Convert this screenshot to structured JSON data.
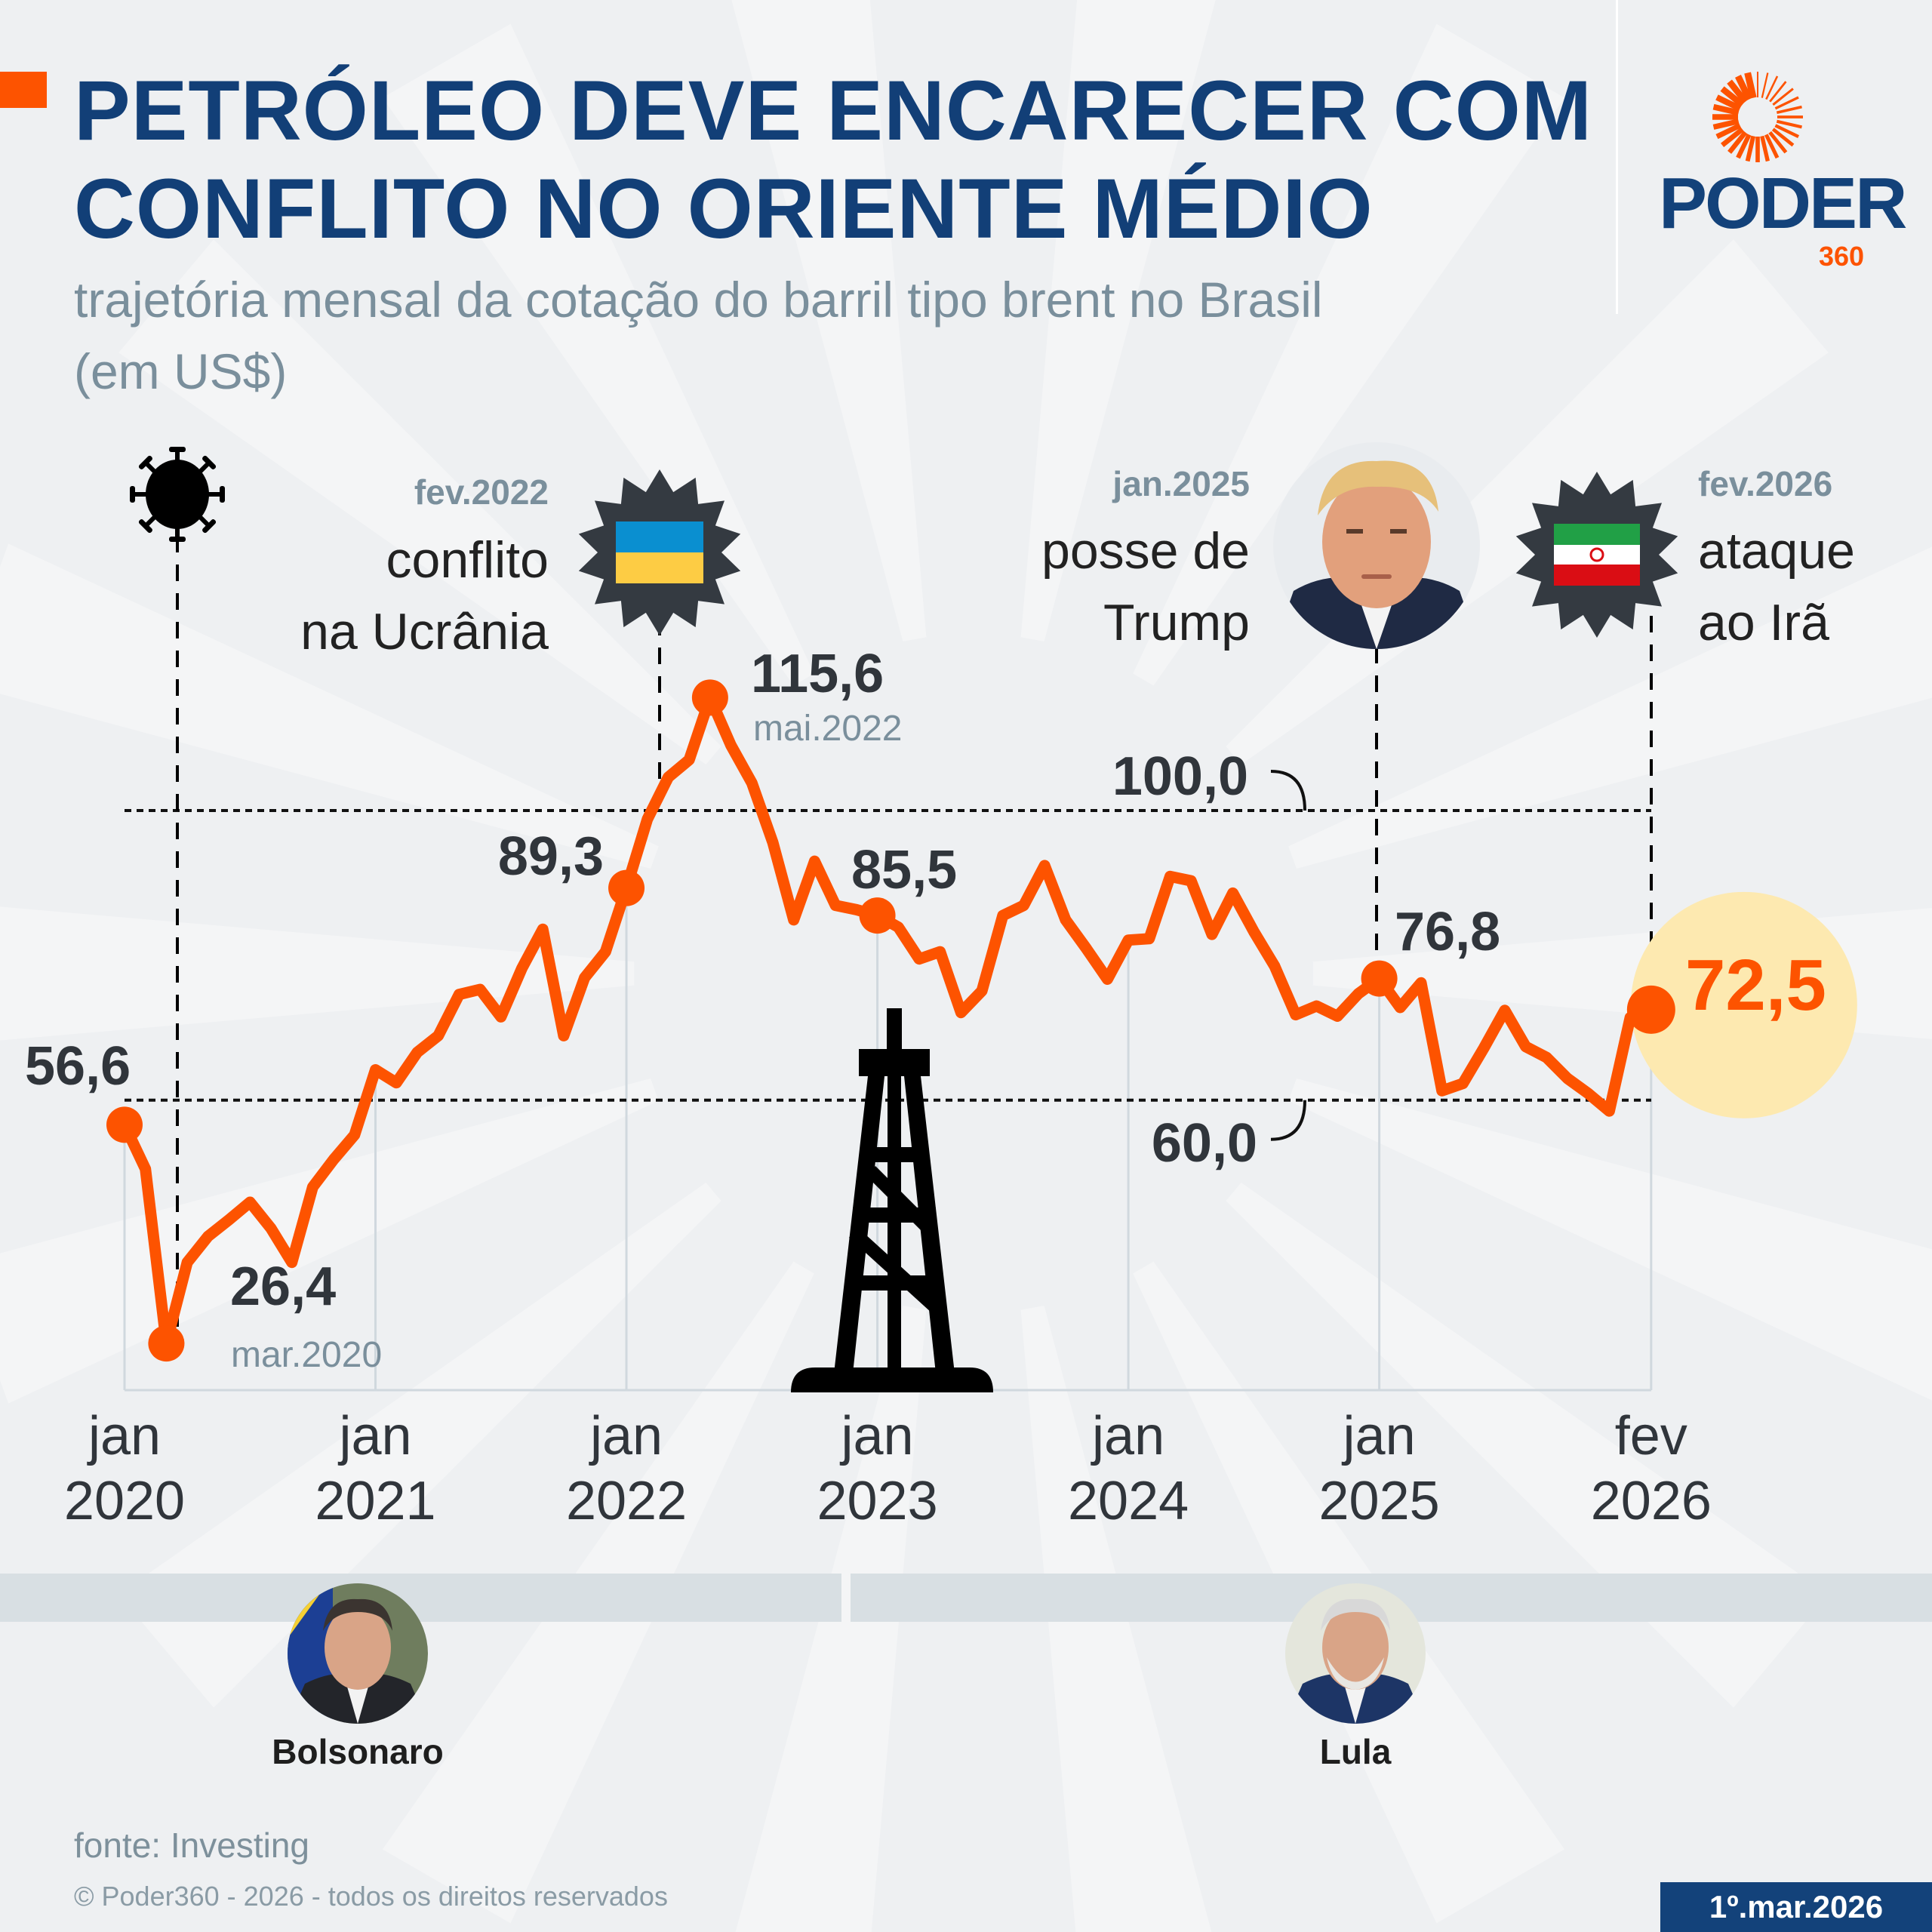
{
  "header": {
    "title_lines": [
      "PETRÓLEO DEVE ENCARECER COM",
      "CONFLITO NO ORIENTE MÉDIO"
    ],
    "subtitle_lines": [
      "trajetória mensal da cotação do barril tipo brent no Brasil",
      "(em US$)"
    ]
  },
  "logo": {
    "word": "PODER",
    "number": "360"
  },
  "colors": {
    "line": "#fd5300",
    "title": "#123f77",
    "highlight_circle": "#fde9b0",
    "band": "#d8dfe3"
  },
  "chart_data": {
    "type": "line",
    "title": "",
    "xlabel": "",
    "ylabel": "",
    "ylim": [
      20,
      120
    ],
    "grid": false,
    "x": [
      "2020-01",
      "2020-02",
      "2020-03",
      "2020-04",
      "2020-05",
      "2020-06",
      "2020-07",
      "2020-08",
      "2020-09",
      "2020-10",
      "2020-11",
      "2020-12",
      "2021-01",
      "2021-02",
      "2021-03",
      "2021-04",
      "2021-05",
      "2021-06",
      "2021-07",
      "2021-08",
      "2021-09",
      "2021-10",
      "2021-11",
      "2021-12",
      "2022-01",
      "2022-02",
      "2022-03",
      "2022-04",
      "2022-05",
      "2022-06",
      "2022-07",
      "2022-08",
      "2022-09",
      "2022-10",
      "2022-11",
      "2022-12",
      "2023-01",
      "2023-02",
      "2023-03",
      "2023-04",
      "2023-05",
      "2023-06",
      "2023-07",
      "2023-08",
      "2023-09",
      "2023-10",
      "2023-11",
      "2023-12",
      "2024-01",
      "2024-02",
      "2024-03",
      "2024-04",
      "2024-05",
      "2024-06",
      "2024-07",
      "2024-08",
      "2024-09",
      "2024-10",
      "2024-11",
      "2024-12",
      "2025-01",
      "2025-02",
      "2025-03",
      "2025-04",
      "2025-05",
      "2025-06",
      "2025-07",
      "2025-08",
      "2025-09",
      "2025-10",
      "2025-11",
      "2025-12",
      "2026-01",
      "2026-02"
    ],
    "values": [
      56.6,
      50.5,
      26.4,
      37.6,
      41.2,
      43.5,
      45.9,
      42.3,
      37.6,
      48.0,
      51.8,
      55.2,
      64.2,
      62.4,
      66.6,
      68.9,
      74.6,
      75.3,
      71.5,
      78.2,
      83.6,
      68.9,
      76.9,
      80.5,
      89.3,
      98.8,
      104.6,
      107.0,
      115.6,
      109.0,
      103.8,
      95.6,
      84.9,
      93.0,
      86.9,
      86.3,
      85.5,
      83.9,
      79.5,
      80.5,
      72.1,
      75.1,
      85.5,
      86.9,
      92.4,
      84.9,
      80.9,
      76.7,
      82.1,
      82.3,
      90.9,
      90.3,
      82.9,
      88.6,
      83.3,
      78.5,
      71.8,
      73.0,
      71.6,
      74.7,
      76.8,
      72.8,
      76.2,
      61.3,
      62.3,
      67.2,
      72.4,
      67.4,
      65.9,
      63.0,
      60.9,
      58.5,
      71.4,
      72.5
    ],
    "ticks": [
      {
        "x": "2020-01",
        "month": "jan",
        "year": "2020"
      },
      {
        "x": "2021-01",
        "month": "jan",
        "year": "2021"
      },
      {
        "x": "2022-01",
        "month": "jan",
        "year": "2022"
      },
      {
        "x": "2023-01",
        "month": "jan",
        "year": "2023"
      },
      {
        "x": "2024-01",
        "month": "jan",
        "year": "2024"
      },
      {
        "x": "2025-01",
        "month": "jan",
        "year": "2025"
      },
      {
        "x": "2026-02",
        "month": "fev",
        "year": "2026"
      }
    ],
    "reference_lines": [
      {
        "value": 100,
        "label": "100,0"
      },
      {
        "value": 60,
        "label": "60,0"
      }
    ],
    "highlights": [
      {
        "x": "2020-01",
        "label": "56,6"
      },
      {
        "x": "2020-03",
        "label": "26,4",
        "date": "mar.2020"
      },
      {
        "x": "2022-01",
        "label": "89,3"
      },
      {
        "x": "2022-05",
        "label": "115,6",
        "date": "mai.2022"
      },
      {
        "x": "2023-01",
        "label": "85,5"
      },
      {
        "x": "2025-01",
        "label": "76,8"
      },
      {
        "x": "2026-02",
        "label": "72,5"
      }
    ]
  },
  "events": {
    "covid": {
      "icon": "virus-icon"
    },
    "ukraine": {
      "date": "fev.2022",
      "lines": [
        "conflito",
        "na Ucrânia"
      ],
      "icon": "ukraine-flag-badge",
      "flag_colors": [
        "#0a8fd0",
        "#fdcc44"
      ]
    },
    "trump": {
      "date": "jan.2025",
      "lines": [
        "posse de",
        "Trump"
      ],
      "icon": "trump-portrait"
    },
    "iran": {
      "date": "fev.2026",
      "lines": [
        "ataque",
        "ao Irã"
      ],
      "icon": "iran-flag-badge",
      "flag_colors": [
        "#21a046",
        "#ffffff",
        "#da0d14"
      ]
    }
  },
  "presidents": [
    {
      "name": "Bolsonaro"
    },
    {
      "name": "Lula"
    }
  ],
  "footer": {
    "source": "fonte: Investing",
    "copyright": "© Poder360 - 2026 - todos os direitos reservados",
    "date": "1º.mar.2026"
  }
}
